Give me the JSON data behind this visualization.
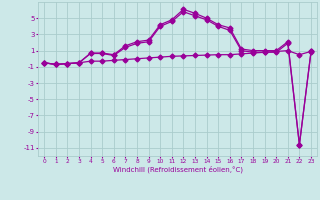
{
  "xlabel": "Windchill (Refroidissement éolien,°C)",
  "background_color": "#cce8e8",
  "grid_color": "#aacccc",
  "line_color": "#990099",
  "markersize": 2.5,
  "linewidth": 0.9,
  "xlim": [
    -0.5,
    23.5
  ],
  "ylim": [
    -12,
    7
  ],
  "yticks": [
    -11,
    -9,
    -7,
    -5,
    -3,
    -1,
    1,
    3,
    5
  ],
  "xticks": [
    0,
    1,
    2,
    3,
    4,
    5,
    6,
    7,
    8,
    9,
    10,
    11,
    12,
    13,
    14,
    15,
    16,
    17,
    18,
    19,
    20,
    21,
    22,
    23
  ],
  "s1x": [
    0,
    1,
    2,
    3,
    4,
    5,
    6,
    7,
    8,
    9,
    10,
    11,
    12,
    13,
    14,
    15,
    16,
    17,
    18,
    19,
    20,
    21,
    22,
    23
  ],
  "s1y": [
    -0.5,
    -0.7,
    -0.6,
    -0.5,
    -0.3,
    -0.3,
    -0.2,
    -0.1,
    0.0,
    0.1,
    0.2,
    0.3,
    0.35,
    0.4,
    0.45,
    0.5,
    0.5,
    0.6,
    0.7,
    0.8,
    0.9,
    1.0,
    0.5,
    0.9
  ],
  "s2x": [
    0,
    1,
    2,
    3,
    4,
    5,
    6,
    7,
    8,
    9,
    10,
    11,
    12,
    13,
    14,
    15,
    16,
    17,
    18,
    19,
    20,
    21,
    22,
    23
  ],
  "s2y": [
    -0.5,
    -0.7,
    -0.6,
    -0.5,
    0.7,
    0.7,
    0.5,
    1.6,
    2.1,
    2.3,
    4.2,
    4.8,
    6.1,
    5.6,
    5.0,
    4.2,
    3.8,
    1.2,
    1.0,
    1.0,
    1.0,
    2.1,
    -10.6,
    0.9
  ],
  "s3x": [
    0,
    1,
    2,
    3,
    4,
    5,
    6,
    7,
    8,
    9,
    10,
    11,
    12,
    13,
    14,
    15,
    16,
    17,
    18,
    19,
    20,
    21,
    22,
    23
  ],
  "s3y": [
    -0.5,
    -0.7,
    -0.6,
    -0.5,
    0.65,
    0.65,
    0.4,
    1.4,
    1.9,
    2.1,
    4.0,
    4.6,
    5.8,
    5.3,
    4.8,
    4.0,
    3.5,
    1.0,
    0.8,
    0.8,
    0.8,
    1.9,
    -10.6,
    0.8
  ]
}
